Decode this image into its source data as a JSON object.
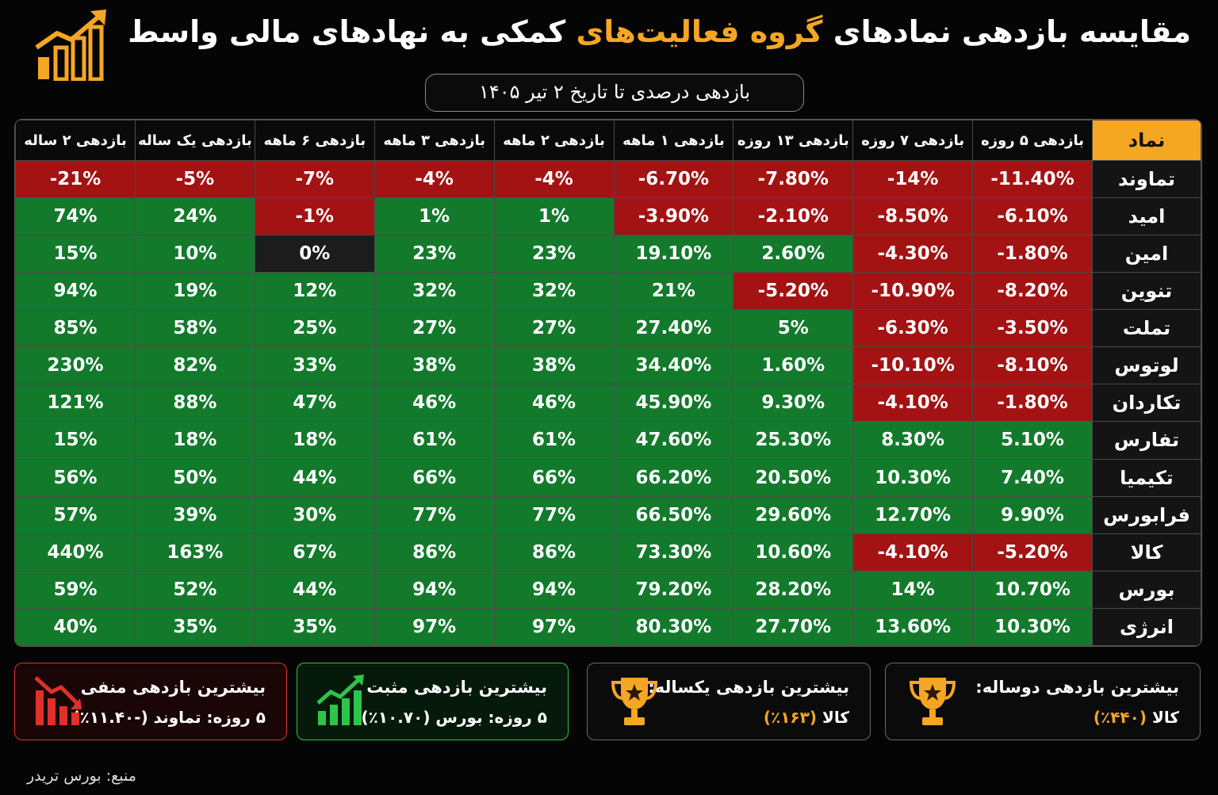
{
  "header": {
    "title_before": "مقایسه بازدهی نمادهای ",
    "title_highlight": "گروه فعالیت‌های",
    "title_after": " کمکی به نهادهای مالی واسط",
    "subtitle": "بازدهی درصدی تا تاریخ ۲ تیر ۱۴۰۵",
    "accent_color": "#f5a623"
  },
  "table": {
    "columns": [
      "نماد",
      "بازدهی ۵ روزه",
      "بازدهی ۷ روزه",
      "بازدهی ۱۳ روزه",
      "بازدهی ۱ ماهه",
      "بازدهی ۲ ماهه",
      "بازدهی ۳ ماهه",
      "بازدهی ۶ ماهه",
      "بازدهی یک ساله",
      "بازدهی ۲ ساله"
    ],
    "rows": [
      {
        "symbol": "تماوند",
        "values": [
          "-11.40%",
          "-14%",
          "-7.80%",
          "-6.70%",
          "-4%",
          "-4%",
          "-7%",
          "-5%",
          "-21%"
        ]
      },
      {
        "symbol": "امید",
        "values": [
          "-6.10%",
          "-8.50%",
          "-2.10%",
          "-3.90%",
          "1%",
          "1%",
          "-1%",
          "24%",
          "74%"
        ]
      },
      {
        "symbol": "امین",
        "values": [
          "-1.80%",
          "-4.30%",
          "2.60%",
          "19.10%",
          "23%",
          "23%",
          "0%",
          "10%",
          "15%"
        ]
      },
      {
        "symbol": "تنوین",
        "values": [
          "-8.20%",
          "-10.90%",
          "-5.20%",
          "21%",
          "32%",
          "32%",
          "12%",
          "19%",
          "94%"
        ]
      },
      {
        "symbol": "تملت",
        "values": [
          "-3.50%",
          "-6.30%",
          "5%",
          "27.40%",
          "27%",
          "27%",
          "25%",
          "58%",
          "85%"
        ]
      },
      {
        "symbol": "لوتوس",
        "values": [
          "-8.10%",
          "-10.10%",
          "1.60%",
          "34.40%",
          "38%",
          "38%",
          "33%",
          "82%",
          "230%"
        ]
      },
      {
        "symbol": "تکاردان",
        "values": [
          "-1.80%",
          "-4.10%",
          "9.30%",
          "45.90%",
          "46%",
          "46%",
          "47%",
          "88%",
          "121%"
        ]
      },
      {
        "symbol": "تفارس",
        "values": [
          "5.10%",
          "8.30%",
          "25.30%",
          "47.60%",
          "61%",
          "61%",
          "18%",
          "18%",
          "15%"
        ]
      },
      {
        "symbol": "تکیمیا",
        "values": [
          "7.40%",
          "10.30%",
          "20.50%",
          "66.20%",
          "66%",
          "66%",
          "44%",
          "50%",
          "56%"
        ]
      },
      {
        "symbol": "فرابورس",
        "values": [
          "9.90%",
          "12.70%",
          "29.60%",
          "66.50%",
          "77%",
          "77%",
          "30%",
          "39%",
          "57%"
        ]
      },
      {
        "symbol": "کالا",
        "values": [
          "-5.20%",
          "-4.10%",
          "10.60%",
          "73.30%",
          "86%",
          "86%",
          "67%",
          "163%",
          "440%"
        ]
      },
      {
        "symbol": "بورس",
        "values": [
          "10.70%",
          "14%",
          "28.20%",
          "79.20%",
          "94%",
          "94%",
          "44%",
          "52%",
          "59%"
        ]
      },
      {
        "symbol": "انرژی",
        "values": [
          "10.30%",
          "13.60%",
          "27.70%",
          "80.30%",
          "97%",
          "97%",
          "35%",
          "35%",
          "40%"
        ]
      }
    ],
    "colors": {
      "positive": "#137a2c",
      "negative": "#a31313",
      "zero": "#1c1c1c"
    }
  },
  "cards": {
    "two_year": {
      "title": "بیشترین بازدهی دوساله:",
      "symbol": "کالا",
      "value": "(۴۴۰٪)",
      "icon": "trophy-icon"
    },
    "one_year": {
      "title": "بیشترین بازدهی یکساله:",
      "symbol": "کالا",
      "value": "(۱۶۳٪)",
      "icon": "trophy-icon"
    },
    "positive": {
      "title": "بیشترین بازدهی مثبت",
      "sub": "۵ روزه: بورس (۱۰.۷۰٪)",
      "icon": "chart-up-icon",
      "color": "#2ec44a"
    },
    "negative": {
      "title": "بیشترین بازدهی منفی",
      "sub": "۵ روزه: تماوند (-۱۱.۴۰٪)",
      "icon": "chart-down-icon",
      "color": "#e0302b"
    }
  },
  "source": "منبع: بورس تریدر"
}
